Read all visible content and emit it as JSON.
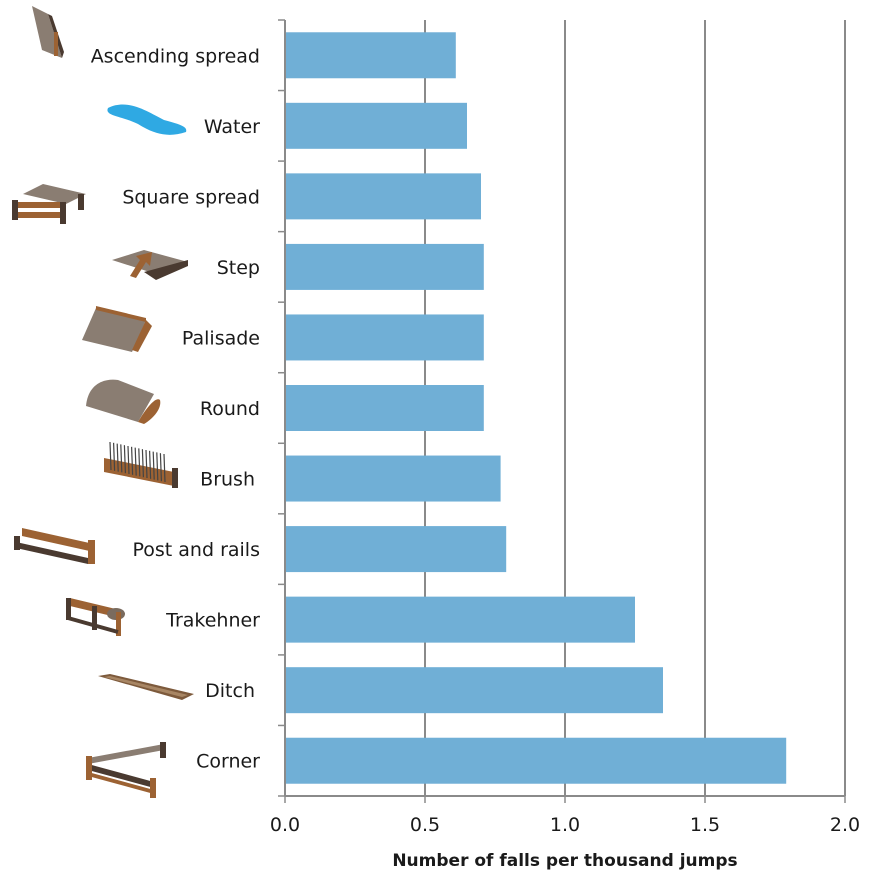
{
  "chart_data": {
    "type": "bar",
    "orientation": "horizontal",
    "categories": [
      "Ascending spread",
      "Water",
      "Square spread",
      "Step",
      "Palisade",
      "Round",
      "Brush",
      "Post and rails",
      "Trakehner",
      "Ditch",
      "Corner"
    ],
    "values": [
      0.61,
      0.65,
      0.7,
      0.71,
      0.71,
      0.71,
      0.77,
      0.79,
      1.25,
      1.35,
      1.79
    ],
    "title": "",
    "xlabel": "Number of falls per thousand jumps",
    "ylabel": "",
    "xlim": [
      0,
      2.0
    ],
    "xticks": [
      "0.0",
      "0.5",
      "1.0",
      "1.5",
      "2.0"
    ],
    "grid": "vertical",
    "bar_color": "#70afd6",
    "icons": [
      "ascending-spread-icon",
      "water-icon",
      "square-spread-icon",
      "step-icon",
      "palisade-icon",
      "round-icon",
      "brush-icon",
      "post-and-rails-icon",
      "trakehner-icon",
      "ditch-icon",
      "corner-icon"
    ]
  }
}
